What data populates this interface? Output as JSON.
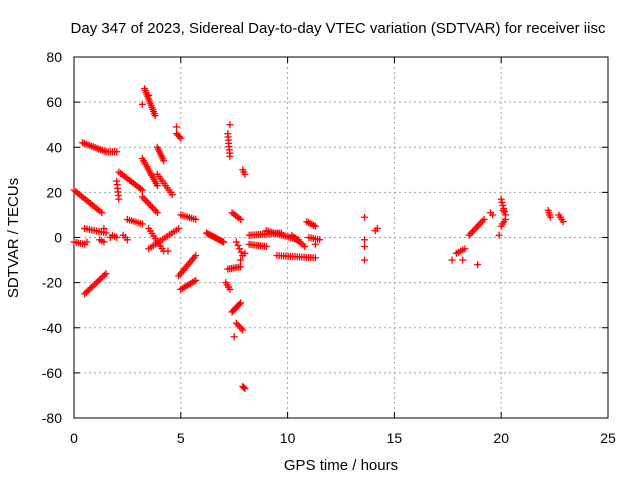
{
  "chart_data": {
    "type": "scatter",
    "title": "Day 347 of 2023, Sidereal Day-to-day VTEC variation (SDTVAR) for receiver iisc",
    "xlabel": "GPS time / hours",
    "ylabel": "SDTVAR / TECUs",
    "xlim": [
      0,
      25
    ],
    "ylim": [
      -80,
      80
    ],
    "xticks": [
      0,
      5,
      10,
      15,
      20,
      25
    ],
    "yticks": [
      -80,
      -60,
      -40,
      -20,
      0,
      20,
      40,
      60,
      80
    ],
    "grid": true,
    "marker": "+",
    "color": "#ff0000",
    "segments": [
      {
        "x0": 0.4,
        "y0": 42,
        "x1": 1.5,
        "y1": 38,
        "n": 14
      },
      {
        "x0": 1.5,
        "y0": 38,
        "x1": 2.0,
        "y1": 38,
        "n": 6
      },
      {
        "x0": 0.0,
        "y0": 21,
        "x1": 1.3,
        "y1": 11,
        "n": 16
      },
      {
        "x0": 0.0,
        "y0": -2,
        "x1": 0.5,
        "y1": -3,
        "n": 6
      },
      {
        "x0": 0.5,
        "y0": 4,
        "x1": 1.5,
        "y1": 2,
        "n": 10
      },
      {
        "x0": 0.5,
        "y0": -25,
        "x1": 1.5,
        "y1": -16,
        "n": 14
      },
      {
        "x0": 1.2,
        "y0": -1,
        "x1": 1.4,
        "y1": -2,
        "n": 3
      },
      {
        "x0": 1.8,
        "y0": 1,
        "x1": 2.0,
        "y1": 0,
        "n": 3
      },
      {
        "x0": 2.3,
        "y0": 1,
        "x1": 2.5,
        "y1": -1,
        "n": 3
      },
      {
        "x0": 2.0,
        "y0": 25,
        "x1": 2.1,
        "y1": 17,
        "n": 6
      },
      {
        "x0": 2.1,
        "y0": 29,
        "x1": 3.2,
        "y1": 21,
        "n": 14
      },
      {
        "x0": 2.5,
        "y0": 8,
        "x1": 3.2,
        "y1": 6,
        "n": 8
      },
      {
        "x0": 3.3,
        "y0": 66,
        "x1": 3.8,
        "y1": 54,
        "n": 14
      },
      {
        "x0": 3.2,
        "y0": 35,
        "x1": 3.9,
        "y1": 23,
        "n": 14
      },
      {
        "x0": 3.2,
        "y0": 18,
        "x1": 3.9,
        "y1": 11,
        "n": 10
      },
      {
        "x0": 3.9,
        "y0": 40,
        "x1": 4.2,
        "y1": 34,
        "n": 8
      },
      {
        "x0": 3.9,
        "y0": 28,
        "x1": 4.6,
        "y1": 19,
        "n": 10
      },
      {
        "x0": 4.8,
        "y0": 46,
        "x1": 5.0,
        "y1": 44,
        "n": 4
      },
      {
        "x0": 3.5,
        "y0": -5,
        "x1": 4.9,
        "y1": 4,
        "n": 14
      },
      {
        "x0": 3.5,
        "y0": 4,
        "x1": 4.2,
        "y1": -6,
        "n": 10
      },
      {
        "x0": 5.0,
        "y0": 10,
        "x1": 5.7,
        "y1": 8,
        "n": 8
      },
      {
        "x0": 4.9,
        "y0": -17,
        "x1": 5.7,
        "y1": -8,
        "n": 12
      },
      {
        "x0": 5.0,
        "y0": -23,
        "x1": 5.7,
        "y1": -19,
        "n": 10
      },
      {
        "x0": 6.2,
        "y0": 2,
        "x1": 7.0,
        "y1": -2,
        "n": 14
      },
      {
        "x0": 7.2,
        "y0": 46,
        "x1": 7.3,
        "y1": 36,
        "n": 8
      },
      {
        "x0": 7.4,
        "y0": 11,
        "x1": 7.8,
        "y1": 8,
        "n": 6
      },
      {
        "x0": 7.2,
        "y0": -14,
        "x1": 7.8,
        "y1": -13,
        "n": 8
      },
      {
        "x0": 7.1,
        "y0": -20,
        "x1": 7.3,
        "y1": -23,
        "n": 4
      },
      {
        "x0": 7.4,
        "y0": -33,
        "x1": 7.8,
        "y1": -29,
        "n": 8
      },
      {
        "x0": 7.6,
        "y0": -38,
        "x1": 7.9,
        "y1": -41,
        "n": 5
      },
      {
        "x0": 7.9,
        "y0": 30,
        "x1": 8.0,
        "y1": 28,
        "n": 3
      },
      {
        "x0": 7.9,
        "y0": -66,
        "x1": 8.0,
        "y1": -67,
        "n": 3
      },
      {
        "x0": 7.6,
        "y0": -2,
        "x1": 7.9,
        "y1": -8,
        "n": 5
      },
      {
        "x0": 8.2,
        "y0": 1,
        "x1": 9.7,
        "y1": 2,
        "n": 18
      },
      {
        "x0": 8.2,
        "y0": -3,
        "x1": 9.0,
        "y1": -4,
        "n": 10
      },
      {
        "x0": 9.0,
        "y0": 3,
        "x1": 10.5,
        "y1": -1,
        "n": 18
      },
      {
        "x0": 9.5,
        "y0": -8,
        "x1": 11.3,
        "y1": -9,
        "n": 18
      },
      {
        "x0": 10.2,
        "y0": 1,
        "x1": 10.8,
        "y1": -4,
        "n": 8
      },
      {
        "x0": 10.9,
        "y0": 7,
        "x1": 11.3,
        "y1": 5,
        "n": 6
      },
      {
        "x0": 11.0,
        "y0": 0,
        "x1": 11.5,
        "y1": -1,
        "n": 6
      },
      {
        "x0": 17.9,
        "y0": -7,
        "x1": 18.3,
        "y1": -5,
        "n": 5
      },
      {
        "x0": 18.5,
        "y0": 1,
        "x1": 19.2,
        "y1": 8,
        "n": 10
      },
      {
        "x0": 19.5,
        "y0": 11,
        "x1": 19.6,
        "y1": 10,
        "n": 2
      },
      {
        "x0": 20.0,
        "y0": 17,
        "x1": 20.2,
        "y1": 10,
        "n": 6
      },
      {
        "x0": 20.0,
        "y0": 5,
        "x1": 20.2,
        "y1": 8,
        "n": 4
      },
      {
        "x0": 22.2,
        "y0": 12,
        "x1": 22.3,
        "y1": 9,
        "n": 4
      },
      {
        "x0": 22.7,
        "y0": 10,
        "x1": 22.9,
        "y1": 7,
        "n": 4
      }
    ],
    "points": [
      [
        0.5,
        4
      ],
      [
        0.6,
        -2
      ],
      [
        1.4,
        4
      ],
      [
        1.7,
        0
      ],
      [
        3.2,
        59
      ],
      [
        3.5,
        63
      ],
      [
        4.4,
        -6
      ],
      [
        4.8,
        49
      ],
      [
        7.0,
        -2
      ],
      [
        7.3,
        50
      ],
      [
        7.5,
        -44
      ],
      [
        7.8,
        -10
      ],
      [
        8.0,
        -7
      ],
      [
        11.3,
        -3
      ],
      [
        13.6,
        9
      ],
      [
        13.6,
        -1
      ],
      [
        13.6,
        -4
      ],
      [
        13.6,
        -10
      ],
      [
        14.1,
        3
      ],
      [
        14.2,
        4
      ],
      [
        17.7,
        -10
      ],
      [
        18.2,
        -10
      ],
      [
        18.9,
        -12
      ],
      [
        19.9,
        1
      ],
      [
        20.1,
        12
      ]
    ]
  }
}
